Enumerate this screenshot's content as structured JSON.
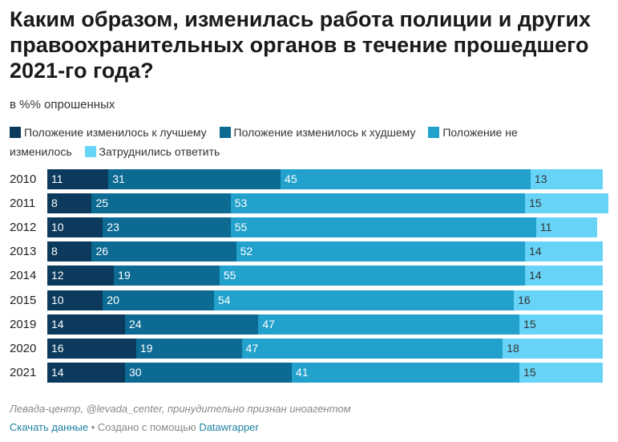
{
  "title": "Каким образом, изменилась работа полиции и других правоохранительных органов в течение прошедшего 2021-го года?",
  "subtitle": "в %% опрошенных",
  "legend": [
    {
      "label": "Положение изменилось к лучшему",
      "color": "#0b3a5c"
    },
    {
      "label": "Положение изменилось к худшему",
      "color": "#0d6a93"
    },
    {
      "label": "Положение не изменилось",
      "color": "#21a1cc"
    },
    {
      "label": "Затруднились ответить",
      "color": "#67d4f7"
    }
  ],
  "chart_data": {
    "type": "bar",
    "orientation": "horizontal",
    "stacked": true,
    "categories": [
      "2010",
      "2011",
      "2012",
      "2013",
      "2014",
      "2015",
      "2019",
      "2020",
      "2021"
    ],
    "series": [
      {
        "name": "Положение изменилось к лучшему",
        "color": "#0b3a5c",
        "label_color": "#ffffff",
        "values": [
          11,
          8,
          10,
          8,
          12,
          10,
          14,
          16,
          14
        ]
      },
      {
        "name": "Положение изменилось к худшему",
        "color": "#0d6a93",
        "label_color": "#ffffff",
        "values": [
          31,
          25,
          23,
          26,
          19,
          20,
          24,
          19,
          30
        ]
      },
      {
        "name": "Положение не изменилось",
        "color": "#21a1cc",
        "label_color": "#ffffff",
        "values": [
          45,
          53,
          55,
          52,
          55,
          54,
          47,
          47,
          41
        ]
      },
      {
        "name": "Затруднились ответить",
        "color": "#67d4f7",
        "label_color": "#333333",
        "values": [
          13,
          15,
          11,
          14,
          14,
          16,
          15,
          18,
          15
        ]
      }
    ],
    "xlim": [
      0,
      100
    ]
  },
  "footer": {
    "source": "Левада-центр, @levada_center, принудительно признан иноагентом",
    "download_label": "Скачать данные",
    "separator": "•",
    "created_with": "Создано с помощью",
    "tool_label": "Datawrapper"
  }
}
